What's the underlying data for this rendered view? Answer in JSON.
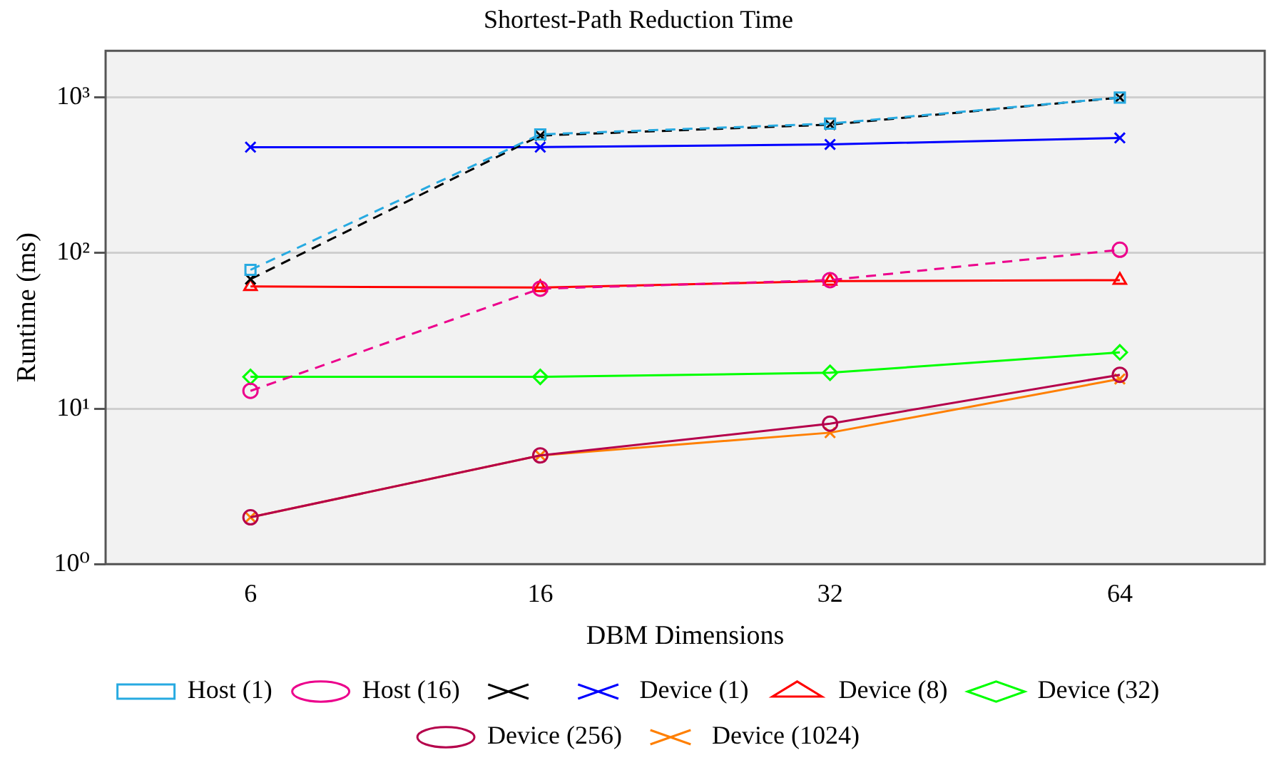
{
  "chart_data": {
    "type": "line",
    "title": "Shortest-Path Reduction Time",
    "xlabel": "DBM Dimensions",
    "ylabel": "Runtime (ms)",
    "categories": [
      "6",
      "16",
      "32",
      "64"
    ],
    "log": "y",
    "ylim": [
      1,
      2000
    ],
    "yticks": [
      {
        "value": 1,
        "label": "10⁰"
      },
      {
        "value": 10,
        "label": "10¹"
      },
      {
        "value": 100,
        "label": "10²"
      },
      {
        "value": 1000,
        "label": "10³"
      }
    ],
    "grid": "y",
    "legend": "bottom",
    "series": [
      {
        "name": "Host (1)",
        "color": "#27aae1",
        "marker": "square",
        "line_style": "dashed",
        "values": [
          78,
          580,
          680,
          1000
        ]
      },
      {
        "name": "Host (16)",
        "color": "#ec008c",
        "marker": "circle",
        "line_style": "dashed",
        "values": [
          13,
          59,
          67,
          105
        ]
      },
      {
        "color": "#000000",
        "marker": "cross",
        "line_style": "dashed",
        "values": [
          68,
          570,
          670,
          1000
        ]
      },
      {
        "name": "Device (1)",
        "color": "#0000ff",
        "marker": "cross",
        "line_style": "solid",
        "values": [
          480,
          480,
          500,
          550
        ]
      },
      {
        "name": "Device (8)",
        "color": "#ff0000",
        "marker": "triangle",
        "line_style": "solid",
        "values": [
          61,
          60,
          66,
          67
        ]
      },
      {
        "name": "Device (32)",
        "color": "#00ff00",
        "marker": "diamond",
        "line_style": "solid",
        "values": [
          16,
          16,
          17,
          23
        ]
      },
      {
        "name": "Device (256)",
        "color": "#b5004b",
        "marker": "circle",
        "line_style": "solid",
        "values": [
          2,
          5,
          8,
          16.5
        ]
      },
      {
        "name": "Device (1024)",
        "color": "#ff7f00",
        "marker": "cross",
        "line_style": "solid",
        "values": [
          2,
          5,
          7,
          15.5
        ]
      }
    ]
  }
}
